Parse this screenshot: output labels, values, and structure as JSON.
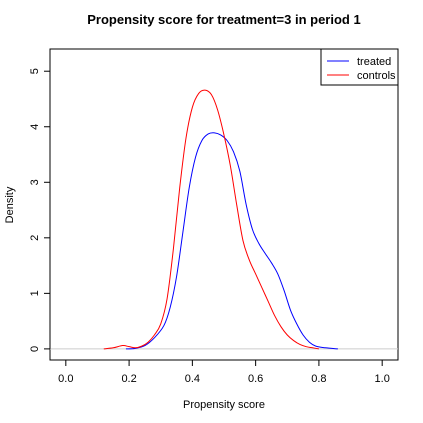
{
  "chart_data": {
    "type": "line",
    "title": "Propensity score for treatment=3 in period 1",
    "xlabel": "Propensity score",
    "ylabel": "Density",
    "xlim": [
      -0.05,
      1.05
    ],
    "ylim": [
      -0.2,
      5.4
    ],
    "x_ticks": [
      "0.0",
      "0.2",
      "0.4",
      "0.6",
      "0.8",
      "1.0"
    ],
    "y_ticks": [
      "0",
      "1",
      "2",
      "3",
      "4",
      "5"
    ],
    "legend_position": "top-right",
    "series": [
      {
        "name": "treated",
        "color": "#0000ff",
        "x": [
          0.19,
          0.22,
          0.25,
          0.28,
          0.31,
          0.33,
          0.35,
          0.37,
          0.39,
          0.41,
          0.43,
          0.45,
          0.47,
          0.49,
          0.51,
          0.53,
          0.55,
          0.57,
          0.59,
          0.61,
          0.63,
          0.65,
          0.67,
          0.69,
          0.71,
          0.73,
          0.75,
          0.77,
          0.79,
          0.82,
          0.86
        ],
        "y": [
          0.0,
          0.01,
          0.06,
          0.2,
          0.42,
          0.75,
          1.3,
          2.1,
          2.9,
          3.45,
          3.75,
          3.87,
          3.89,
          3.85,
          3.75,
          3.55,
          3.2,
          2.6,
          2.15,
          1.9,
          1.72,
          1.55,
          1.35,
          1.05,
          0.7,
          0.45,
          0.25,
          0.12,
          0.05,
          0.02,
          0.0
        ]
      },
      {
        "name": "controls",
        "color": "#ff0000",
        "x": [
          0.12,
          0.15,
          0.18,
          0.2,
          0.22,
          0.24,
          0.26,
          0.28,
          0.3,
          0.32,
          0.34,
          0.36,
          0.38,
          0.4,
          0.42,
          0.44,
          0.46,
          0.48,
          0.5,
          0.52,
          0.54,
          0.56,
          0.58,
          0.6,
          0.62,
          0.64,
          0.66,
          0.68,
          0.7,
          0.72,
          0.74,
          0.76,
          0.78,
          0.8
        ],
        "y": [
          0.0,
          0.02,
          0.06,
          0.04,
          0.02,
          0.05,
          0.12,
          0.25,
          0.45,
          0.9,
          1.8,
          2.9,
          3.8,
          4.35,
          4.6,
          4.66,
          4.58,
          4.3,
          3.85,
          3.3,
          2.6,
          1.95,
          1.6,
          1.35,
          1.1,
          0.85,
          0.6,
          0.4,
          0.25,
          0.15,
          0.08,
          0.04,
          0.02,
          0.0
        ]
      }
    ]
  }
}
